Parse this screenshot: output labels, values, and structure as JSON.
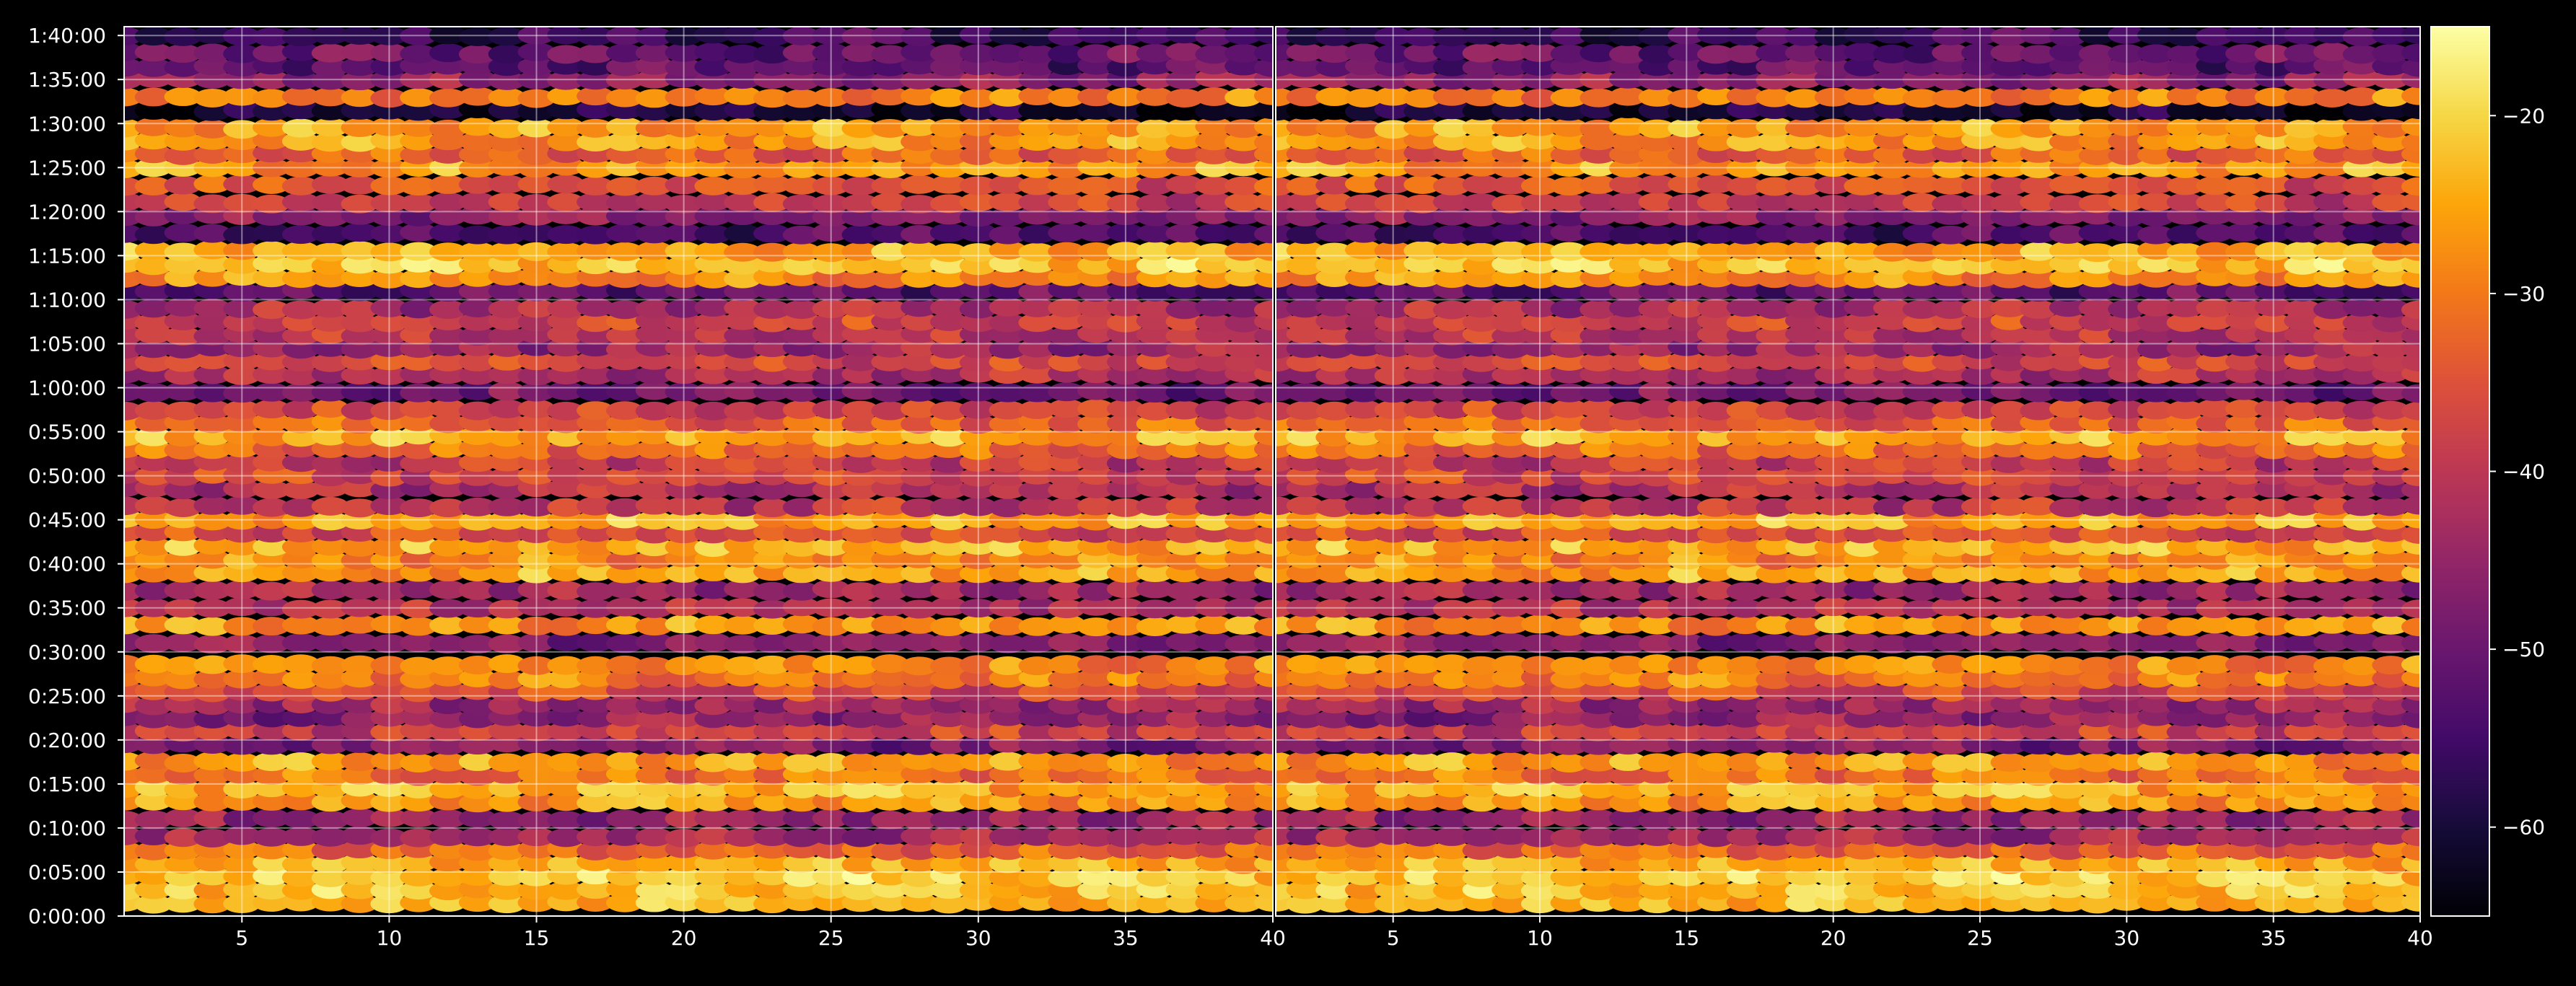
{
  "chart_data": [
    {
      "type": "heatmap",
      "panel": "left",
      "title": "",
      "xlabel": "",
      "ylabel": "",
      "xlim": [
        1,
        40
      ],
      "ylim_seconds": [
        0,
        6060
      ],
      "x_ticks": [
        5,
        10,
        15,
        20,
        25,
        30,
        35,
        40
      ],
      "x_tick_labels": [
        "5",
        "10",
        "15",
        "20",
        "25",
        "30",
        "35",
        "40"
      ],
      "y_ticks": [
        "0:00:00",
        "0:05:00",
        "0:10:00",
        "0:15:00",
        "0:20:00",
        "0:25:00",
        "0:30:00",
        "0:35:00",
        "0:40:00",
        "0:45:00",
        "0:50:00",
        "0:55:00",
        "1:00:00",
        "1:05:00",
        "1:10:00",
        "1:15:00",
        "1:20:00",
        "1:25:00",
        "1:30:00",
        "1:35:00",
        "1:40:00"
      ],
      "grid": true,
      "colormap": "inferno",
      "value_unit": "",
      "description_of_bands": "Horizontal bands of values roughly every 2-3 minutes; brightest rows near 0:02-0:06, 0:14-0:17, 0:41-0:46, 0:54-0:56, 1:13-1:16, 1:25-1:30",
      "row_values": [
        {
          "t": "0:01:30",
          "v": -24
        },
        {
          "t": "0:03:00",
          "v": -22
        },
        {
          "t": "0:04:30",
          "v": -21
        },
        {
          "t": "0:06:00",
          "v": -24
        },
        {
          "t": "0:07:30",
          "v": -32
        },
        {
          "t": "0:09:00",
          "v": -44
        },
        {
          "t": "0:11:00",
          "v": -45
        },
        {
          "t": "0:13:00",
          "v": -27
        },
        {
          "t": "0:14:30",
          "v": -24
        },
        {
          "t": "0:16:00",
          "v": -30
        },
        {
          "t": "0:17:30",
          "v": -26
        },
        {
          "t": "0:19:30",
          "v": -48
        },
        {
          "t": "0:21:00",
          "v": -38
        },
        {
          "t": "0:22:30",
          "v": -46
        },
        {
          "t": "0:24:00",
          "v": -44
        },
        {
          "t": "0:25:30",
          "v": -36
        },
        {
          "t": "0:27:00",
          "v": -30
        },
        {
          "t": "0:28:30",
          "v": -29
        },
        {
          "t": "0:31:00",
          "v": -47
        },
        {
          "t": "0:33:00",
          "v": -27
        },
        {
          "t": "0:35:00",
          "v": -41
        },
        {
          "t": "0:37:00",
          "v": -44
        },
        {
          "t": "0:39:00",
          "v": -25
        },
        {
          "t": "0:40:30",
          "v": -28
        },
        {
          "t": "0:42:00",
          "v": -24
        },
        {
          "t": "0:43:30",
          "v": -36
        },
        {
          "t": "0:45:00",
          "v": -24
        },
        {
          "t": "0:46:30",
          "v": -40
        },
        {
          "t": "0:48:30",
          "v": -42
        },
        {
          "t": "0:50:00",
          "v": -37
        },
        {
          "t": "0:51:30",
          "v": -40
        },
        {
          "t": "0:53:00",
          "v": -32
        },
        {
          "t": "0:54:30",
          "v": -25
        },
        {
          "t": "0:56:00",
          "v": -33
        },
        {
          "t": "0:57:30",
          "v": -38
        },
        {
          "t": "0:59:30",
          "v": -49
        },
        {
          "t": "1:01:30",
          "v": -42
        },
        {
          "t": "1:03:00",
          "v": -37
        },
        {
          "t": "1:04:30",
          "v": -44
        },
        {
          "t": "1:06:00",
          "v": -40
        },
        {
          "t": "1:07:30",
          "v": -38
        },
        {
          "t": "1:09:00",
          "v": -42
        },
        {
          "t": "1:11:00",
          "v": -52
        },
        {
          "t": "1:12:30",
          "v": -28
        },
        {
          "t": "1:14:00",
          "v": -22
        },
        {
          "t": "1:15:30",
          "v": -25
        },
        {
          "t": "1:17:30",
          "v": -53
        },
        {
          "t": "1:19:30",
          "v": -46
        },
        {
          "t": "1:21:00",
          "v": -38
        },
        {
          "t": "1:23:00",
          "v": -35
        },
        {
          "t": "1:25:00",
          "v": -26
        },
        {
          "t": "1:26:30",
          "v": -33
        },
        {
          "t": "1:28:00",
          "v": -27
        },
        {
          "t": "1:29:30",
          "v": -26
        },
        {
          "t": "1:31:30",
          "v": -60
        },
        {
          "t": "1:33:00",
          "v": -29
        },
        {
          "t": "1:35:00",
          "v": -46
        },
        {
          "t": "1:36:30",
          "v": -52
        },
        {
          "t": "1:38:00",
          "v": -50
        },
        {
          "t": "1:40:00",
          "v": -55
        }
      ]
    },
    {
      "type": "heatmap",
      "panel": "right",
      "title": "",
      "xlabel": "",
      "ylabel": "",
      "xlim": [
        1,
        40
      ],
      "x_ticks": [
        5,
        10,
        15,
        20,
        25,
        30,
        35,
        40
      ],
      "x_tick_labels": [
        "5",
        "10",
        "15",
        "20",
        "25",
        "30",
        "35",
        "40"
      ],
      "grid": true,
      "colormap": "inferno",
      "same_rows_as": "left"
    },
    {
      "type": "colorbar",
      "vmin": -65,
      "vmax": -15,
      "ticks": [
        -20,
        -30,
        -40,
        -50,
        -60
      ],
      "tick_labels": [
        "−20",
        "−30",
        "−40",
        "−50",
        "−60"
      ],
      "position": "right"
    }
  ]
}
